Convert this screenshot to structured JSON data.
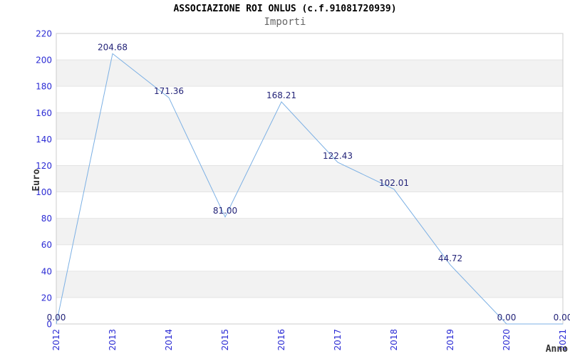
{
  "header": {
    "title": "ASSOCIAZIONE ROI ONLUS (c.f.91081720939)",
    "subtitle": "Importi"
  },
  "chart_data": {
    "type": "line",
    "title": "ASSOCIAZIONE ROI ONLUS (c.f.91081720939)",
    "subtitle": "Importi",
    "xlabel": "Anno",
    "ylabel": "Euro",
    "categories": [
      "2012",
      "2013",
      "2014",
      "2015",
      "2016",
      "2017",
      "2018",
      "2019",
      "2020",
      "2021"
    ],
    "values": [
      0.0,
      204.68,
      171.36,
      81.0,
      168.21,
      122.43,
      102.01,
      44.72,
      0.0,
      0.0
    ],
    "point_labels": [
      "0.00",
      "204.68",
      "171.36",
      "81.00",
      "168.21",
      "122.43",
      "102.01",
      "44.72",
      "0.00",
      "0.00"
    ],
    "ylim": [
      0,
      220
    ],
    "ytick_step": 20,
    "ytick_labels": [
      "0",
      "20",
      "40",
      "60",
      "80",
      "100",
      "120",
      "140",
      "160",
      "180",
      "200",
      "220"
    ],
    "grid": "horizontal-alternating-bands",
    "legend": "none",
    "colors": {
      "line": "#7cb0e4",
      "tick_label": "#2b2bd4",
      "point_label": "#232378",
      "band": "#f2f2f2",
      "grid_line": "#e4e4e4",
      "plot_border": "#cccccc",
      "title": "#000000",
      "subtitle": "#666666",
      "axis_title": "#333333"
    }
  }
}
